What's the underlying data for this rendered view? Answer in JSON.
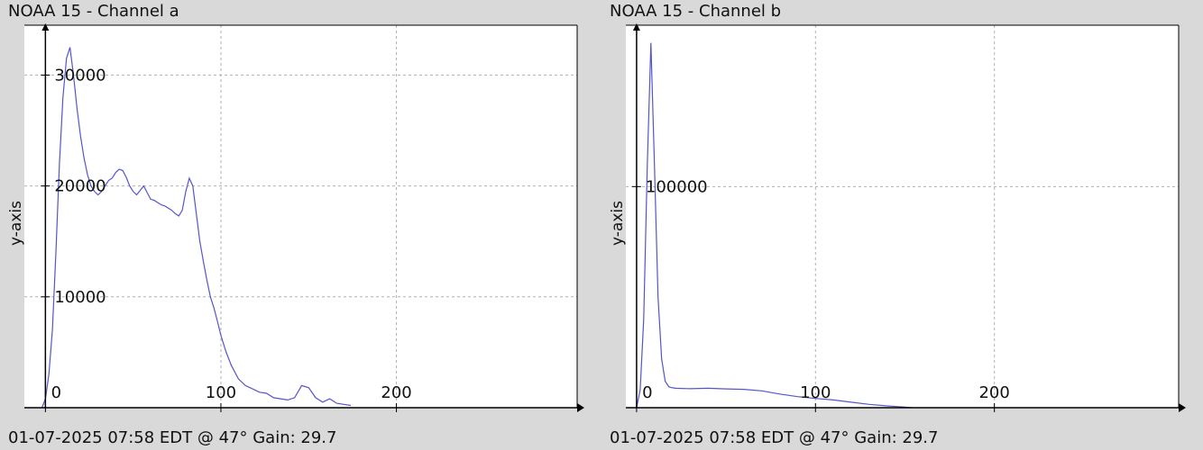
{
  "panels": [
    {
      "title": "NOAA 15 - Channel a",
      "footer": "01-07-2025 07:58 EDT @ 47° Gain: 29.7",
      "ylabel": "y-axis"
    },
    {
      "title": "NOAA 15 - Channel b",
      "footer": "01-07-2025 07:58 EDT @ 47° Gain: 29.7",
      "ylabel": "y-axis"
    }
  ],
  "chart_data": [
    {
      "type": "line",
      "title": "NOAA 15 - Channel a",
      "xlabel": "",
      "ylabel": "y-axis",
      "xlim": [
        -12,
        303
      ],
      "ylim": [
        0,
        34500
      ],
      "xticks": [
        0,
        100,
        200
      ],
      "xtick_labels": [
        "0",
        "100",
        "200"
      ],
      "yticks": [
        10000,
        20000,
        30000
      ],
      "ytick_labels": [
        "10000",
        "20000",
        "30000"
      ],
      "grid": true,
      "color": "#5555cc",
      "series": [
        {
          "x": [
            -2,
            0,
            2,
            4,
            6,
            8,
            10,
            12,
            14,
            16,
            18,
            20,
            22,
            24,
            26,
            28,
            30,
            32,
            34,
            36,
            38,
            40,
            42,
            44,
            46,
            48,
            50,
            52,
            54,
            56,
            58,
            60,
            62,
            64,
            66,
            68,
            70,
            72,
            74,
            76,
            78,
            80,
            82,
            84,
            86,
            88,
            90,
            92,
            94,
            96,
            98,
            100,
            103,
            106,
            110,
            114,
            118,
            122,
            126,
            130,
            134,
            138,
            142,
            146,
            150,
            154,
            158,
            162,
            166,
            170,
            174
          ],
          "y": [
            0,
            800,
            3000,
            7000,
            14000,
            22000,
            28000,
            31500,
            32500,
            30000,
            27000,
            24500,
            22500,
            21000,
            20000,
            19500,
            19200,
            19500,
            20000,
            20500,
            20700,
            21200,
            21500,
            21400,
            20800,
            20000,
            19500,
            19200,
            19600,
            20000,
            19400,
            18800,
            18700,
            18500,
            18300,
            18200,
            18000,
            17800,
            17500,
            17300,
            17800,
            19500,
            20700,
            20000,
            17500,
            15000,
            13200,
            11500,
            10000,
            9000,
            7800,
            6500,
            5000,
            3800,
            2600,
            2000,
            1700,
            1400,
            1300,
            900,
            800,
            700,
            900,
            2000,
            1800,
            900,
            500,
            800,
            400,
            300,
            200
          ]
        }
      ]
    },
    {
      "type": "line",
      "title": "NOAA 15 - Channel b",
      "xlabel": "",
      "ylabel": "y-axis",
      "xlim": [
        -6,
        303
      ],
      "ylim": [
        0,
        173000
      ],
      "xticks": [
        0,
        100,
        200
      ],
      "xtick_labels": [
        "0",
        "100",
        "200"
      ],
      "yticks": [
        100000
      ],
      "ytick_labels": [
        "100000"
      ],
      "grid": true,
      "color": "#5555cc",
      "series": [
        {
          "x": [
            0,
            2,
            4,
            6,
            8,
            10,
            12,
            14,
            16,
            18,
            20,
            22,
            25,
            30,
            40,
            50,
            60,
            70,
            80,
            90,
            100,
            110,
            120,
            130,
            140,
            150,
            154
          ],
          "y": [
            0,
            8000,
            40000,
            110000,
            165000,
            110000,
            50000,
            22000,
            12000,
            9500,
            9000,
            8800,
            8700,
            8600,
            8800,
            8500,
            8300,
            7600,
            6200,
            5000,
            4200,
            3500,
            2500,
            1500,
            800,
            300,
            0
          ]
        }
      ]
    }
  ]
}
